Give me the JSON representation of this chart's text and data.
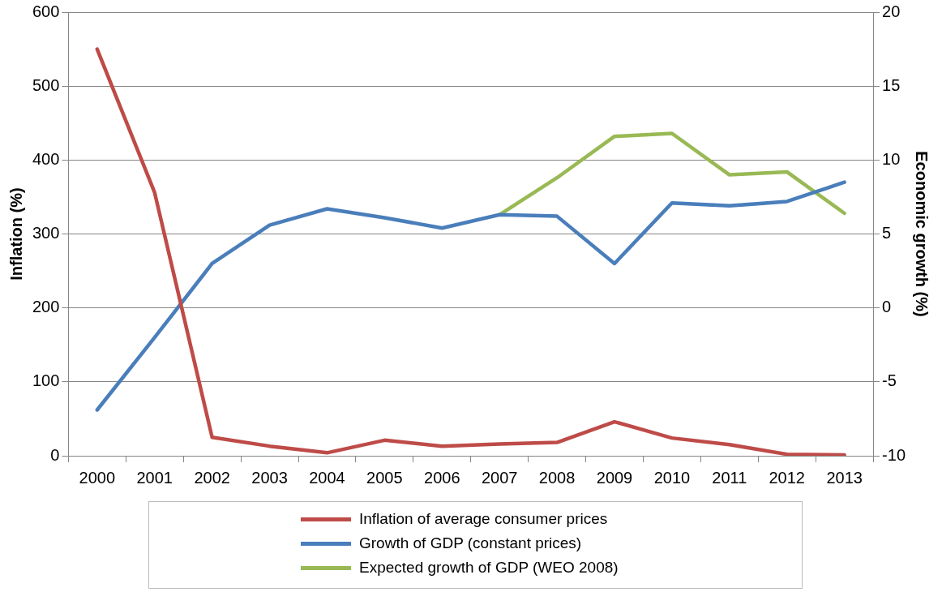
{
  "chart_data": {
    "type": "line",
    "ylabel": "Inflation (%)",
    "y2label": "Economic growth (%)",
    "categories": [
      "2000",
      "2001",
      "2002",
      "2003",
      "2004",
      "2005",
      "2006",
      "2007",
      "2008",
      "2009",
      "2010",
      "2011",
      "2012",
      "2013"
    ],
    "series": [
      {
        "name": "Inflation of average consumer prices",
        "color": "#be4b48",
        "values": [
          550,
          356,
          25,
          13,
          4,
          21,
          13,
          16,
          18,
          46,
          24,
          15,
          2,
          1
        ]
      },
      {
        "name": "Growth of GDP (constant prices)",
        "color": "#4a7ebb",
        "axis": "y2",
        "values": [
          -6.9,
          -2.0,
          3.0,
          5.6,
          6.7,
          6.1,
          5.4,
          6.3,
          6.2,
          3.0,
          7.1,
          6.9,
          7.2,
          8.5
        ]
      },
      {
        "name": "Expected growth of GDP (WEO 2008)",
        "color": "#98b954",
        "axis": "y2",
        "values": [
          null,
          null,
          null,
          null,
          null,
          null,
          null,
          6.3,
          8.8,
          11.6,
          11.8,
          9.0,
          9.2,
          6.4
        ]
      }
    ],
    "ylim": [
      0,
      600
    ],
    "yticks": [
      0,
      100,
      200,
      300,
      400,
      500,
      600
    ],
    "y2lim": [
      -10,
      20
    ],
    "y2ticks": [
      -10,
      -5,
      0,
      5,
      10,
      15,
      20
    ],
    "grid": "y",
    "legend": "bottom",
    "marker": "none",
    "line_style": "solid"
  }
}
